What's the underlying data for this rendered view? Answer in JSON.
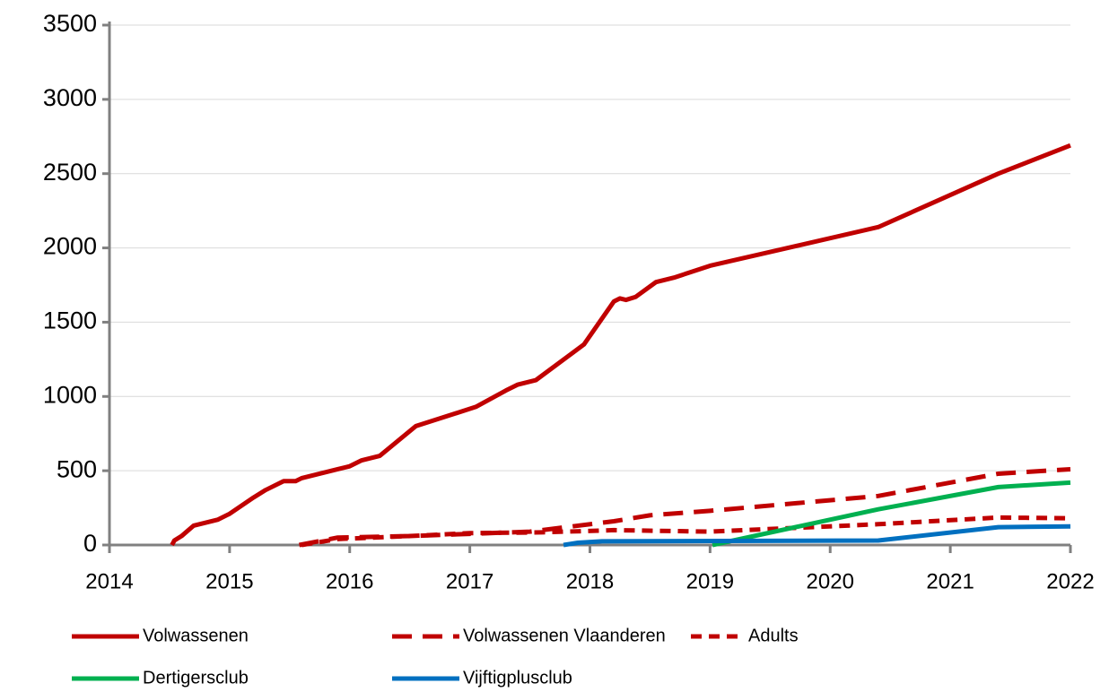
{
  "chart_data": {
    "type": "line",
    "xlim": [
      2014,
      2022
    ],
    "xticks": [
      2014,
      2015,
      2016,
      2017,
      2018,
      2019,
      2020,
      2021,
      2022
    ],
    "ylim": [
      0,
      3500
    ],
    "yticks": [
      0,
      500,
      1000,
      1500,
      2000,
      2500,
      3000,
      3500
    ],
    "grid": true,
    "legend": "bottom",
    "series": [
      {
        "name": "Volwassenen",
        "color": "#c00000",
        "style": "solid",
        "x": [
          2014.52,
          2014.54,
          2014.6,
          2014.7,
          2014.9,
          2015.0,
          2015.2,
          2015.3,
          2015.45,
          2015.55,
          2015.6,
          2015.9,
          2016.0,
          2016.1,
          2016.25,
          2016.55,
          2017.05,
          2017.3,
          2017.4,
          2017.55,
          2017.85,
          2017.95,
          2018.2,
          2018.25,
          2018.3,
          2018.38,
          2018.55,
          2018.7,
          2019.0,
          2020.4,
          2021.4,
          2022.0
        ],
        "values": [
          0,
          30,
          60,
          130,
          170,
          210,
          320,
          370,
          430,
          430,
          450,
          510,
          530,
          570,
          600,
          800,
          930,
          1040,
          1080,
          1110,
          1290,
          1350,
          1640,
          1660,
          1650,
          1670,
          1770,
          1800,
          1880,
          2140,
          2500,
          2690
        ]
      },
      {
        "name": "Volwassenen Vlaanderen",
        "color": "#c00000",
        "style": "dashed",
        "x": [
          2015.58,
          2015.9,
          2016.5,
          2017.0,
          2017.5,
          2018.2,
          2018.5,
          2019.0,
          2020.4,
          2021.4,
          2022.0
        ],
        "values": [
          0,
          50,
          60,
          75,
          90,
          160,
          200,
          230,
          330,
          480,
          510
        ]
      },
      {
        "name": "Adults",
        "color": "#c00000",
        "style": "dotted",
        "x": [
          2015.6,
          2015.9,
          2016.5,
          2017.0,
          2017.6,
          2018.2,
          2019.0,
          2020.4,
          2021.4,
          2022.0
        ],
        "values": [
          0,
          40,
          60,
          80,
          85,
          100,
          90,
          140,
          185,
          180
        ]
      },
      {
        "name": "Dertigersclub",
        "color": "#00b050",
        "style": "solid",
        "x": [
          2019.02,
          2020.4,
          2021.4,
          2022.0
        ],
        "values": [
          0,
          240,
          390,
          420
        ]
      },
      {
        "name": "Vijftigplusclub",
        "color": "#0070c0",
        "style": "solid",
        "x": [
          2017.78,
          2017.9,
          2018.1,
          2020.4,
          2021.4,
          2022.0
        ],
        "values": [
          0,
          15,
          25,
          30,
          120,
          125
        ]
      }
    ]
  }
}
